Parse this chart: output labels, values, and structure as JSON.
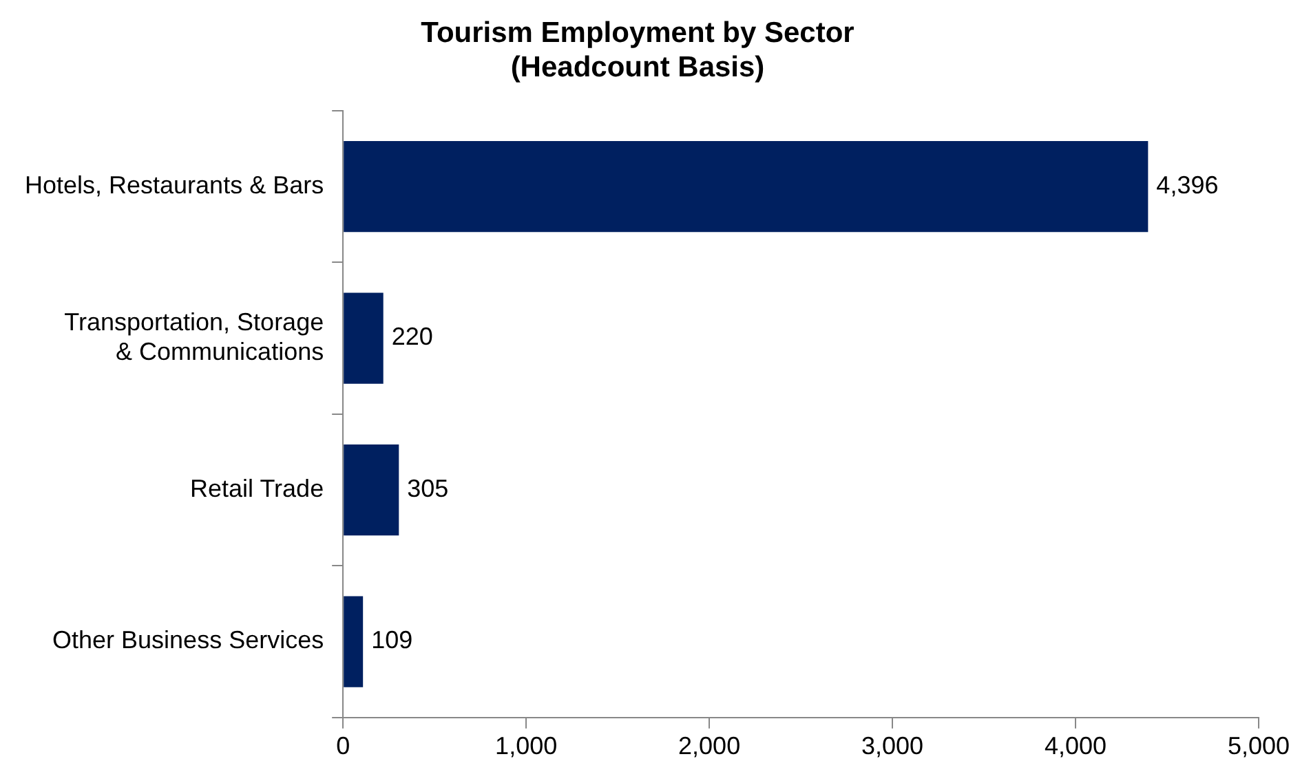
{
  "chart_data": {
    "type": "bar",
    "orientation": "horizontal",
    "title": "Tourism Employment by Sector\n(Headcount Basis)",
    "categories": [
      "Hotels, Restaurants & Bars",
      "Transportation, Storage\n& Communications",
      "Retail Trade",
      "Other Business Services"
    ],
    "values": [
      4396,
      220,
      305,
      109
    ],
    "value_labels": [
      "4,396",
      "220",
      "305",
      "109"
    ],
    "color": "#002060",
    "xlim": [
      0,
      5000
    ],
    "xticks": [
      0,
      {
        "value": 1000,
        "label": "1,000"
      },
      {
        "value": 2000,
        "label": "2,000"
      },
      {
        "value": 3000,
        "label": "3,000"
      },
      {
        "value": 4000,
        "label": "4,000"
      },
      {
        "value": 5000,
        "label": "5,000"
      }
    ],
    "grid": false,
    "legend": false
  }
}
